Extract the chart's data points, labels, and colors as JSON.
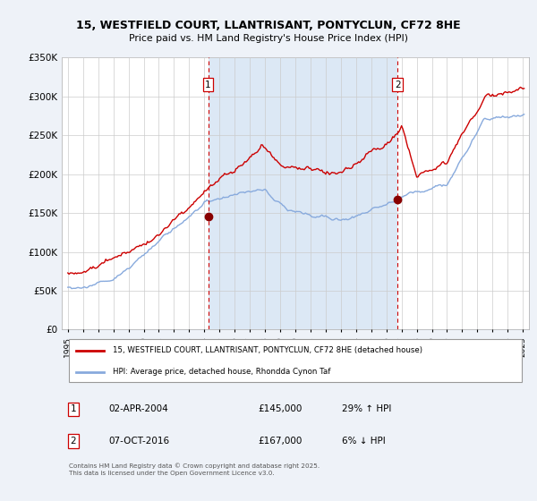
{
  "title_line1": "15, WESTFIELD COURT, LLANTRISANT, PONTYCLUN, CF72 8HE",
  "title_line2": "Price paid vs. HM Land Registry's House Price Index (HPI)",
  "ylim": [
    0,
    350000
  ],
  "yticks": [
    0,
    50000,
    100000,
    150000,
    200000,
    250000,
    300000,
    350000
  ],
  "ytick_labels": [
    "£0",
    "£50K",
    "£100K",
    "£150K",
    "£200K",
    "£250K",
    "£300K",
    "£350K"
  ],
  "sale1": {
    "date_num": 2004.25,
    "price": 145000,
    "label": "1",
    "date_str": "02-APR-2004",
    "pct": "29% ↑ HPI"
  },
  "sale2": {
    "date_num": 2016.75,
    "price": 167000,
    "label": "2",
    "date_str": "07-OCT-2016",
    "pct": "6% ↓ HPI"
  },
  "legend_line1": "15, WESTFIELD COURT, LLANTRISANT, PONTYCLUN, CF72 8HE (detached house)",
  "legend_line2": "HPI: Average price, detached house, Rhondda Cynon Taf",
  "footer": "Contains HM Land Registry data © Crown copyright and database right 2025.\nThis data is licensed under the Open Government Licence v3.0.",
  "price_color": "#cc0000",
  "hpi_color": "#88aadd",
  "shade_color": "#dce8f5",
  "background_color": "#eef2f8",
  "plot_bg": "#ffffff",
  "grid_color": "#cccccc",
  "vline_color": "#cc0000"
}
